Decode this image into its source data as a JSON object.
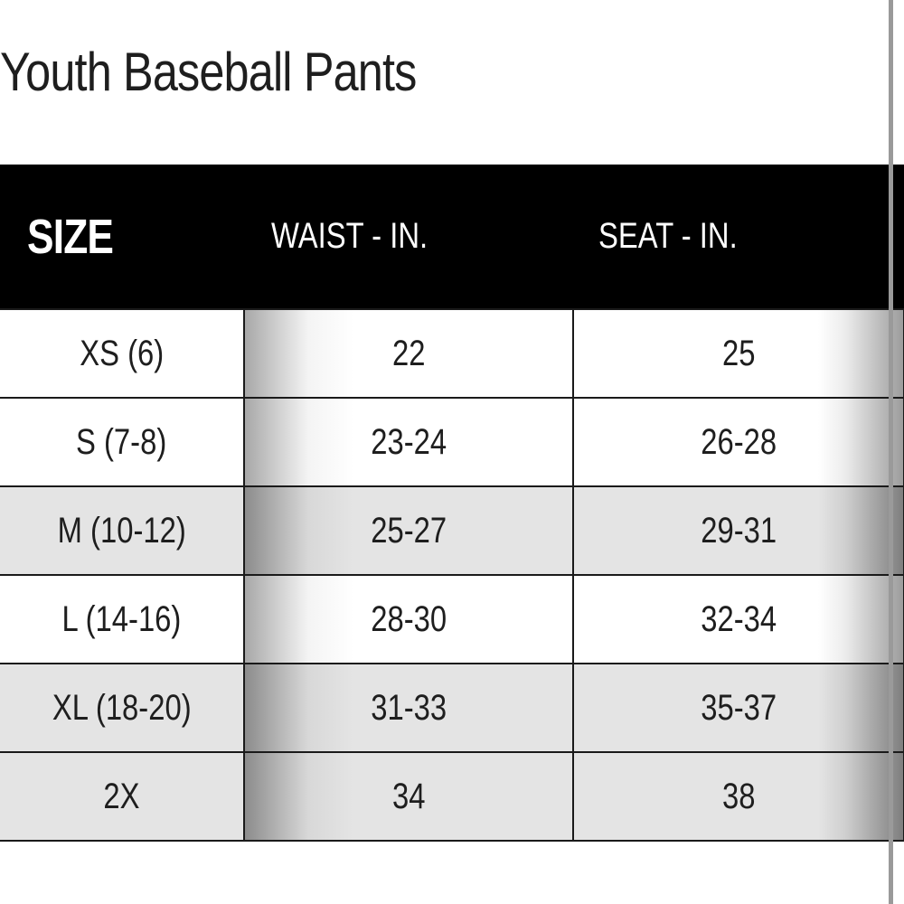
{
  "title": "Youth Baseball Pants",
  "table": {
    "headers": {
      "size": "SIZE",
      "waist": "WAIST - IN.",
      "seat": "SEAT - IN."
    },
    "rows": [
      {
        "size": "XS (6)",
        "waist": "22",
        "seat": "25",
        "shade": "white"
      },
      {
        "size": "S (7-8)",
        "waist": "23-24",
        "seat": "26-28",
        "shade": "white"
      },
      {
        "size": "M (10-12)",
        "waist": "25-27",
        "seat": "29-31",
        "shade": "gray"
      },
      {
        "size": "L (14-16)",
        "waist": "28-30",
        "seat": "32-34",
        "shade": "white"
      },
      {
        "size": "XL (18-20)",
        "waist": "31-33",
        "seat": "35-37",
        "shade": "gray"
      },
      {
        "size": "2X",
        "waist": "34",
        "seat": "38",
        "shade": "gray"
      }
    ]
  },
  "colors": {
    "header_bg": "#000000",
    "header_text": "#ffffff",
    "row_gray": "#e4e4e4",
    "row_white": "#ffffff",
    "text": "#1e1e1e"
  }
}
